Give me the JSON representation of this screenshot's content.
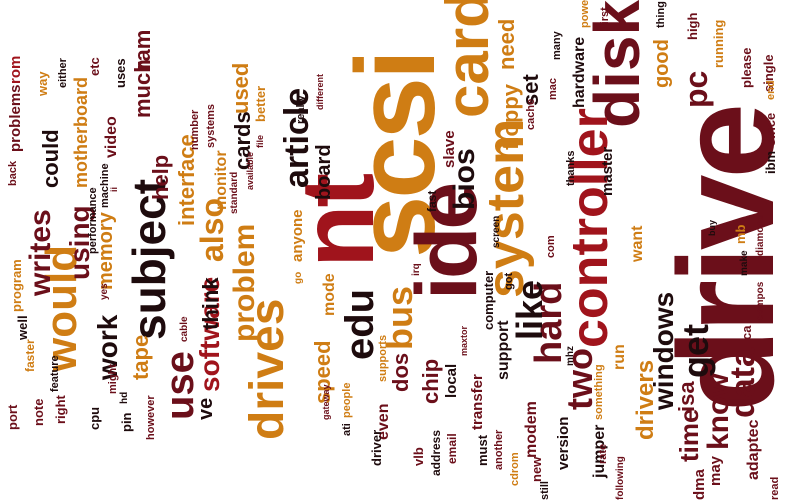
{
  "colors": {
    "maroon": "#6b0f1a",
    "red": "#a0141c",
    "orange": "#cf7d14",
    "dark": "#1e0b0d",
    "brown": "#8c4a10"
  },
  "words": [
    {
      "text": "drive",
      "color": "maroon"
    },
    {
      "text": "scsi",
      "color": "orange"
    },
    {
      "text": "ide",
      "color": "maroon"
    },
    {
      "text": "nt",
      "color": "red"
    },
    {
      "text": "card",
      "color": "orange"
    },
    {
      "text": "disk",
      "color": "maroon"
    },
    {
      "text": "controller",
      "color": "red"
    },
    {
      "text": "drives",
      "color": "orange"
    },
    {
      "text": "system",
      "color": "orange"
    },
    {
      "text": "subject",
      "color": "dark"
    },
    {
      "text": "would",
      "color": "orange"
    },
    {
      "text": "use",
      "color": "maroon"
    },
    {
      "text": "edu",
      "color": "dark"
    },
    {
      "text": "bus",
      "color": "orange"
    },
    {
      "text": "hard",
      "color": "maroon"
    },
    {
      "text": "like",
      "color": "dark"
    },
    {
      "text": "get",
      "color": "dark"
    },
    {
      "text": "two",
      "color": "maroon"
    },
    {
      "text": "data",
      "color": "maroon"
    },
    {
      "text": "pc",
      "color": "maroon"
    },
    {
      "text": "know",
      "color": "maroon"
    },
    {
      "text": "article",
      "color": "dark"
    },
    {
      "text": "problem",
      "color": "orange"
    },
    {
      "text": "software",
      "color": "red"
    },
    {
      "text": "also",
      "color": "orange"
    },
    {
      "text": "writes",
      "color": "maroon"
    },
    {
      "text": "using",
      "color": "maroon"
    },
    {
      "text": "work",
      "color": "dark"
    },
    {
      "text": "windows",
      "color": "dark"
    },
    {
      "text": "time",
      "color": "maroon"
    },
    {
      "text": "drivers",
      "color": "orange"
    },
    {
      "text": "bios",
      "color": "dark"
    },
    {
      "text": "interface",
      "color": "orange"
    },
    {
      "text": "tape",
      "color": "orange"
    },
    {
      "text": "much",
      "color": "maroon"
    },
    {
      "text": "ram",
      "color": "maroon"
    },
    {
      "text": "floppy",
      "color": "orange"
    },
    {
      "text": "need",
      "color": "orange"
    },
    {
      "text": "set",
      "color": "dark"
    },
    {
      "text": "could",
      "color": "dark"
    },
    {
      "text": "help",
      "color": "maroon"
    },
    {
      "text": "memory",
      "color": "orange"
    },
    {
      "text": "isa",
      "color": "maroon"
    },
    {
      "text": "speed",
      "color": "orange"
    },
    {
      "text": "dos",
      "color": "maroon"
    },
    {
      "text": "chip",
      "color": "maroon"
    },
    {
      "text": "cards",
      "color": "dark"
    },
    {
      "text": "used",
      "color": "orange"
    },
    {
      "text": "motherboard",
      "color": "orange"
    },
    {
      "text": "think",
      "color": "dark"
    },
    {
      "text": "board",
      "color": "dark"
    },
    {
      "text": "good",
      "color": "orange"
    },
    {
      "text": "ve",
      "color": "dark"
    },
    {
      "text": "monitor",
      "color": "orange"
    },
    {
      "text": "hardware",
      "color": "dark"
    },
    {
      "text": "video",
      "color": "maroon"
    },
    {
      "text": "problems",
      "color": "maroon"
    },
    {
      "text": "rom",
      "color": "red"
    },
    {
      "text": "mode",
      "color": "orange"
    },
    {
      "text": "even",
      "color": "maroon"
    },
    {
      "text": "modem",
      "color": "maroon"
    },
    {
      "text": "jumper",
      "color": "dark"
    },
    {
      "text": "adaptec",
      "color": "maroon"
    },
    {
      "text": "support",
      "color": "dark"
    },
    {
      "text": "transfer",
      "color": "maroon"
    },
    {
      "text": "local",
      "color": "dark"
    },
    {
      "text": "want",
      "color": "orange"
    },
    {
      "text": "run",
      "color": "orange"
    },
    {
      "text": "master",
      "color": "dark"
    },
    {
      "text": "slave",
      "color": "maroon"
    },
    {
      "text": "version",
      "color": "dark"
    },
    {
      "text": "may",
      "color": "maroon"
    },
    {
      "text": "dma",
      "color": "maroon"
    },
    {
      "text": "mb",
      "color": "orange"
    },
    {
      "text": "ibm",
      "color": "dark"
    },
    {
      "text": "since",
      "color": "maroon"
    },
    {
      "text": "single",
      "color": "maroon"
    },
    {
      "text": "please",
      "color": "maroon"
    },
    {
      "text": "running",
      "color": "orange"
    },
    {
      "text": "high",
      "color": "maroon"
    },
    {
      "text": "end",
      "color": "orange"
    },
    {
      "text": "thing",
      "color": "dark"
    },
    {
      "text": "power",
      "color": "orange"
    },
    {
      "text": "first",
      "color": "maroon"
    },
    {
      "text": "mac",
      "color": "maroon"
    },
    {
      "text": "many",
      "color": "dark"
    },
    {
      "text": "cache",
      "color": "maroon"
    },
    {
      "text": "uses",
      "color": "dark"
    },
    {
      "text": "etc",
      "color": "maroon"
    },
    {
      "text": "either",
      "color": "dark"
    },
    {
      "text": "way",
      "color": "orange"
    },
    {
      "text": "faster",
      "color": "orange"
    },
    {
      "text": "back",
      "color": "maroon"
    },
    {
      "text": "performance",
      "color": "dark"
    },
    {
      "text": "machine",
      "color": "dark"
    },
    {
      "text": "systems",
      "color": "maroon"
    },
    {
      "text": "number",
      "color": "maroon"
    },
    {
      "text": "better",
      "color": "orange"
    },
    {
      "text": "really",
      "color": "dark"
    },
    {
      "text": "different",
      "color": "maroon"
    },
    {
      "text": "available",
      "color": "maroon"
    },
    {
      "text": "file",
      "color": "maroon"
    },
    {
      "text": "standard",
      "color": "maroon"
    },
    {
      "text": "anyone",
      "color": "orange"
    },
    {
      "text": "go",
      "color": "orange"
    },
    {
      "text": "computer",
      "color": "dark"
    },
    {
      "text": "maxtor",
      "color": "maroon"
    },
    {
      "text": "people",
      "color": "orange"
    },
    {
      "text": "gateway",
      "color": "maroon"
    },
    {
      "text": "ati",
      "color": "dark"
    },
    {
      "text": "driver",
      "color": "dark"
    },
    {
      "text": "vlb",
      "color": "maroon"
    },
    {
      "text": "address",
      "color": "dark"
    },
    {
      "text": "email",
      "color": "maroon"
    },
    {
      "text": "must",
      "color": "dark"
    },
    {
      "text": "another",
      "color": "maroon"
    },
    {
      "text": "new",
      "color": "maroon"
    },
    {
      "text": "cdrom",
      "color": "orange"
    },
    {
      "text": "still",
      "color": "dark"
    },
    {
      "text": "something",
      "color": "orange"
    },
    {
      "text": "read",
      "color": "maroon"
    },
    {
      "text": "rate",
      "color": "maroon"
    },
    {
      "text": "following",
      "color": "maroon"
    },
    {
      "text": "ca",
      "color": "maroon"
    },
    {
      "text": "make",
      "color": "dark"
    },
    {
      "text": "compos",
      "color": "maroon"
    },
    {
      "text": "diamond",
      "color": "maroon"
    },
    {
      "text": "buy",
      "color": "dark"
    },
    {
      "text": "thanks",
      "color": "dark"
    },
    {
      "text": "com",
      "color": "maroon"
    },
    {
      "text": "fast",
      "color": "dark"
    },
    {
      "text": "irq",
      "color": "maroon"
    },
    {
      "text": "got",
      "color": "dark"
    },
    {
      "text": "mhz",
      "color": "dark"
    },
    {
      "text": "screen",
      "color": "dark"
    },
    {
      "text": "supports",
      "color": "orange"
    },
    {
      "text": "cable",
      "color": "maroon"
    },
    {
      "text": "might",
      "color": "maroon"
    },
    {
      "text": "hd",
      "color": "dark"
    },
    {
      "text": "feature",
      "color": "dark"
    },
    {
      "text": "right",
      "color": "maroon"
    },
    {
      "text": "note",
      "color": "maroon"
    },
    {
      "text": "port",
      "color": "maroon"
    },
    {
      "text": "cpu",
      "color": "dark"
    },
    {
      "text": "pin",
      "color": "dark"
    },
    {
      "text": "however",
      "color": "maroon"
    },
    {
      "text": "program",
      "color": "orange"
    },
    {
      "text": "well",
      "color": "dark"
    },
    {
      "text": "yes",
      "color": "maroon"
    },
    {
      "text": "ii",
      "color": "maroon"
    }
  ]
}
